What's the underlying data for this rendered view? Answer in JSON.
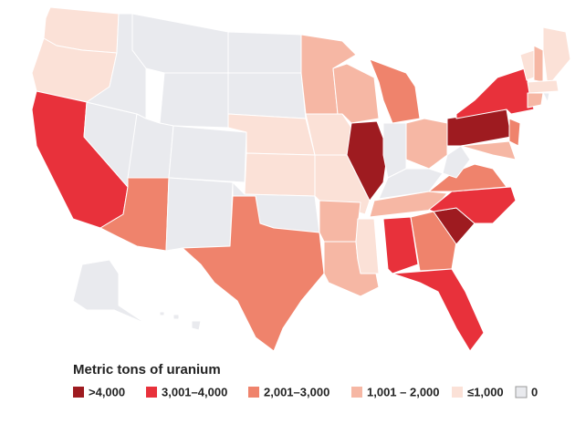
{
  "legend": {
    "title": "Metric tons of uranium",
    "items": [
      {
        "label": ">4,000",
        "color": "#9e1b20"
      },
      {
        "label": "3,001–4,000",
        "color": "#e8313b"
      },
      {
        "label": "2,001–3,000",
        "color": "#ef836c"
      },
      {
        "label": "1,001 – 2,000",
        "color": "#f6b7a4"
      },
      {
        "label": "≤1,000",
        "color": "#fbe1d7"
      },
      {
        "label": "0",
        "color": "#e9eaee"
      }
    ]
  }
}
